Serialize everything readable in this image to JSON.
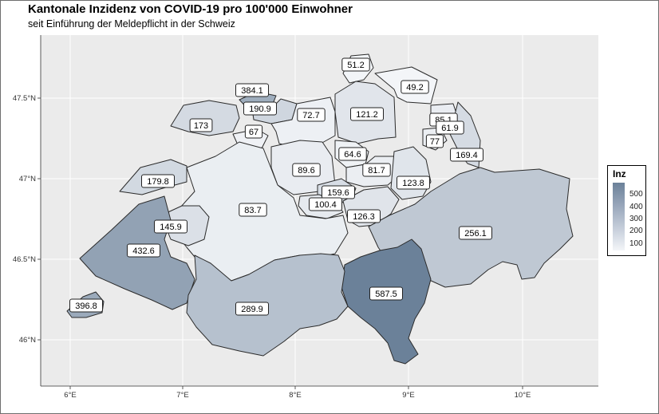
{
  "title": "Kantonale Inzidenz von COVID-19 pro 100'000 Einwohner",
  "subtitle": "seit Einführung der Meldepflicht in der Schweiz",
  "legend": {
    "title": "Inz",
    "ticks": [
      "500",
      "400",
      "300",
      "200",
      "100"
    ]
  },
  "axes": {
    "x_ticks": [
      "6°E",
      "7°E",
      "8°E",
      "9°E",
      "10°E"
    ],
    "y_ticks": [
      "47.5°N",
      "47°N",
      "46.5°N",
      "46°N"
    ]
  },
  "colors": {
    "low": "#f3f5f8",
    "high": "#6b8199",
    "border": "#2b2b2b"
  },
  "cantons": [
    {
      "label": "51.2",
      "value": 51.2
    },
    {
      "label": "384.1",
      "value": 384.1
    },
    {
      "label": "190.9",
      "value": 190.9
    },
    {
      "label": "173",
      "value": 173
    },
    {
      "label": "67",
      "value": 67
    },
    {
      "label": "72.7",
      "value": 72.7
    },
    {
      "label": "121.2",
      "value": 121.2
    },
    {
      "label": "49.2",
      "value": 49.2
    },
    {
      "label": "85.1",
      "value": 85.1
    },
    {
      "label": "61.9",
      "value": 61.9
    },
    {
      "label": "77",
      "value": 77
    },
    {
      "label": "169.4",
      "value": 169.4
    },
    {
      "label": "179.8",
      "value": 179.8
    },
    {
      "label": "64.6",
      "value": 64.6
    },
    {
      "label": "89.6",
      "value": 89.6
    },
    {
      "label": "81.7",
      "value": 81.7
    },
    {
      "label": "123.8",
      "value": 123.8
    },
    {
      "label": "159.6",
      "value": 159.6
    },
    {
      "label": "100.4",
      "value": 100.4
    },
    {
      "label": "83.7",
      "value": 83.7
    },
    {
      "label": "126.3",
      "value": 126.3
    },
    {
      "label": "145.9",
      "value": 145.9
    },
    {
      "label": "256.1",
      "value": 256.1
    },
    {
      "label": "432.6",
      "value": 432.6
    },
    {
      "label": "587.5",
      "value": 587.5
    },
    {
      "label": "289.9",
      "value": 289.9
    },
    {
      "label": "396.8",
      "value": 396.8
    }
  ]
}
